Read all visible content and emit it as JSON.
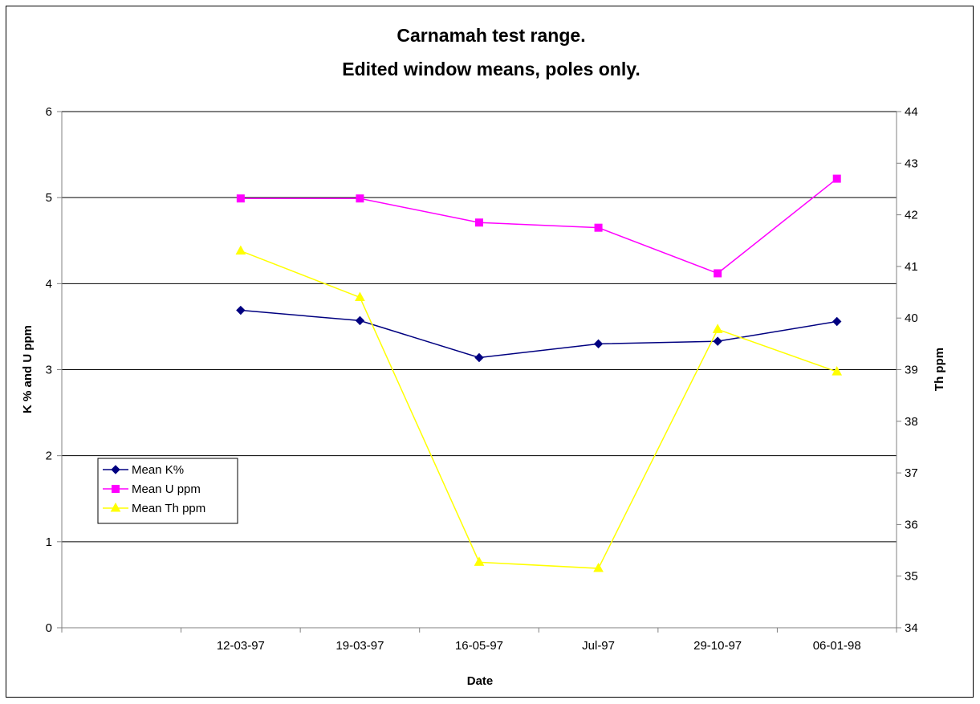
{
  "chart_data": {
    "type": "line",
    "title": [
      "Carnamah test range.",
      "Edited window means, poles only."
    ],
    "xlabel": "Date",
    "ylabel_left": "K % and U ppm",
    "ylabel_right": "Th ppm",
    "categories": [
      "",
      "12-03-97",
      "19-03-97",
      "16-05-97",
      "Jul-97",
      "29-10-97",
      "06-01-98"
    ],
    "y_left": {
      "min": 0,
      "max": 6,
      "ticks": [
        0,
        1,
        2,
        3,
        4,
        5,
        6
      ]
    },
    "y_right": {
      "min": 34,
      "max": 44,
      "ticks": [
        34,
        35,
        36,
        37,
        38,
        39,
        40,
        41,
        42,
        43,
        44
      ]
    },
    "grid": "horizontal major gridlines on left axis",
    "legend_position": "left",
    "series": [
      {
        "name": "Mean K%",
        "axis": "left",
        "marker": "diamond",
        "color": "#000080",
        "values": [
          null,
          3.69,
          3.57,
          3.14,
          3.3,
          3.33,
          3.56
        ]
      },
      {
        "name": "Mean U ppm",
        "axis": "left",
        "marker": "square",
        "color": "#ff00ff",
        "values": [
          null,
          4.99,
          4.99,
          4.71,
          4.65,
          4.12,
          5.22
        ]
      },
      {
        "name": "Mean Th ppm",
        "axis": "right",
        "marker": "triangle",
        "color": "#ffff00",
        "values": [
          null,
          41.3,
          40.4,
          35.27,
          35.15,
          39.78,
          38.96
        ]
      }
    ]
  }
}
